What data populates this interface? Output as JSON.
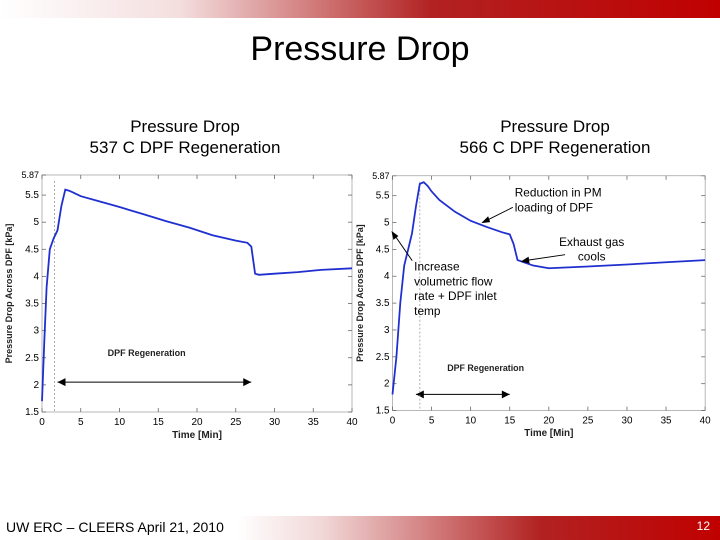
{
  "slide": {
    "title": "Pressure Drop",
    "footer": "UW ERC – CLEERS April 21, 2010",
    "page_number": "12",
    "accent_color": "#c00000"
  },
  "chart_data": [
    {
      "type": "line",
      "title_line1": "Pressure Drop",
      "title_line2": "537 C DPF Regeneration",
      "xlabel": "Time [Min]",
      "ylabel": "Pressure Drop Across DPF [kPa]",
      "xlim": [
        0,
        40
      ],
      "ylim": [
        1.5,
        5.87
      ],
      "x_ticks": [
        "0",
        "5",
        "10",
        "15",
        "20",
        "25",
        "30",
        "35",
        "40"
      ],
      "y_ticks": [
        "1.5",
        "2",
        "2.5",
        "3",
        "3.5",
        "4",
        "4.5",
        "5",
        "5.5",
        "5.87"
      ],
      "series_color": "#1f2fd0",
      "series": [
        {
          "x": [
            0,
            0.3,
            0.6,
            1,
            1.5,
            2,
            2.5,
            3,
            3.5,
            4,
            5,
            7,
            10,
            13,
            16,
            19,
            22,
            25,
            26.5,
            27,
            27.5,
            28,
            30,
            33,
            36,
            40
          ],
          "y": [
            1.7,
            2.8,
            3.8,
            4.5,
            4.7,
            4.85,
            5.3,
            5.6,
            5.58,
            5.55,
            5.48,
            5.4,
            5.28,
            5.15,
            5.02,
            4.9,
            4.76,
            4.66,
            4.62,
            4.55,
            4.05,
            4.03,
            4.05,
            4.08,
            4.12,
            4.15
          ]
        }
      ],
      "annotations": [
        {
          "text": "DPF Regeneration",
          "x": 13.5,
          "y": 2.5
        }
      ],
      "regeneration_span": [
        2,
        27
      ]
    },
    {
      "type": "line",
      "title_line1": "Pressure Drop",
      "title_line2": "566 C DPF Regeneration",
      "xlabel": "Time [Min]",
      "ylabel": "Pressure Drop Across DPF [kPa]",
      "xlim": [
        0,
        40
      ],
      "ylim": [
        1.5,
        5.87
      ],
      "x_ticks": [
        "0",
        "5",
        "10",
        "15",
        "20",
        "25",
        "30",
        "35",
        "40"
      ],
      "y_ticks": [
        "1.5",
        "2",
        "2.5",
        "3",
        "3.5",
        "4",
        "4.5",
        "5",
        "5.5",
        "5.87"
      ],
      "series_color": "#1f2fd0",
      "series": [
        {
          "x": [
            0,
            0.5,
            1,
            1.5,
            2,
            2.5,
            3,
            3.5,
            4,
            4.5,
            5,
            6,
            8,
            10,
            12,
            14,
            15,
            15.5,
            16,
            18,
            20,
            25,
            30,
            35,
            40
          ],
          "y": [
            1.8,
            2.5,
            3.5,
            4.2,
            4.5,
            4.8,
            5.3,
            5.72,
            5.75,
            5.68,
            5.58,
            5.42,
            5.2,
            5.03,
            4.92,
            4.82,
            4.78,
            4.6,
            4.3,
            4.2,
            4.15,
            4.18,
            4.22,
            4.26,
            4.3
          ]
        }
      ],
      "annotations": [
        {
          "text": "DPF Regeneration",
          "x": 7,
          "y": 2.2
        },
        {
          "text": "Reduction in PM loading of DPF"
        },
        {
          "text": "Exhaust gas cools"
        },
        {
          "text": "Increase volumetric flow rate + DPF inlet temp"
        }
      ],
      "regeneration_span": [
        3,
        15
      ]
    }
  ]
}
